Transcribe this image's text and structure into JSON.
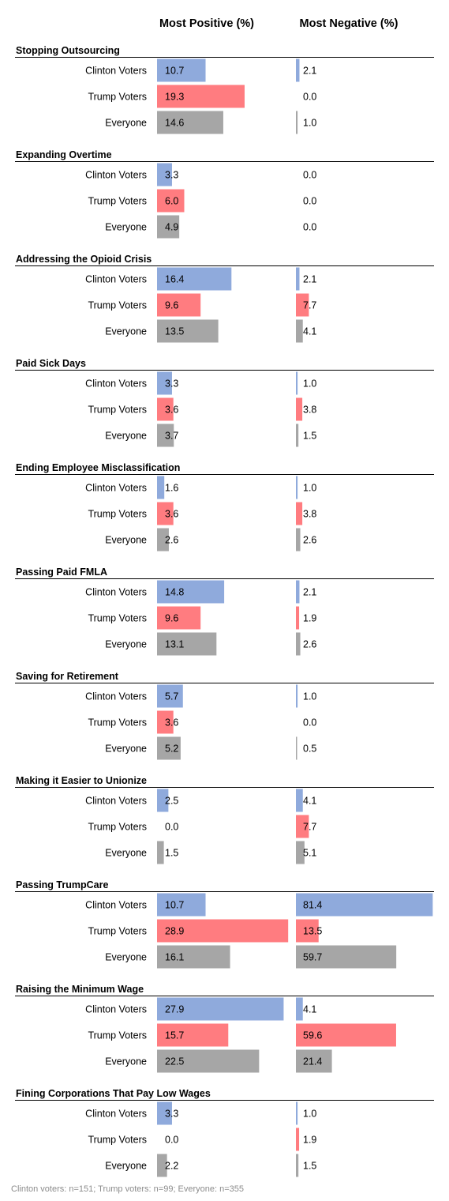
{
  "chart_data": {
    "type": "bar",
    "orientation": "horizontal",
    "columns": [
      "Most Positive (%)",
      "Most Negative (%)"
    ],
    "groups": [
      "Clinton Voters",
      "Trump Voters",
      "Everyone"
    ],
    "colors": {
      "Clinton Voters": "#8faadc",
      "Trump Voters": "#ff7c80",
      "Everyone": "#a6a6a6"
    },
    "grid": false,
    "legend": "none",
    "xlim": [
      0,
      82
    ],
    "categories": [
      {
        "name": "Stopping Outsourcing",
        "positive": [
          10.7,
          19.3,
          14.6
        ],
        "negative": [
          2.1,
          0.0,
          1.0
        ]
      },
      {
        "name": "Expanding Overtime",
        "positive": [
          3.3,
          6.0,
          4.9
        ],
        "negative": [
          0.0,
          0.0,
          0.0
        ]
      },
      {
        "name": "Addressing the Opioid Crisis",
        "positive": [
          16.4,
          9.6,
          13.5
        ],
        "negative": [
          2.1,
          7.7,
          4.1
        ]
      },
      {
        "name": "Paid Sick Days",
        "positive": [
          3.3,
          3.6,
          3.7
        ],
        "negative": [
          1.0,
          3.8,
          1.5
        ]
      },
      {
        "name": "Ending Employee Misclassification",
        "positive": [
          1.6,
          3.6,
          2.6
        ],
        "negative": [
          1.0,
          3.8,
          2.6
        ]
      },
      {
        "name": "Passing Paid FMLA",
        "positive": [
          14.8,
          9.6,
          13.1
        ],
        "negative": [
          2.1,
          1.9,
          2.6
        ]
      },
      {
        "name": "Saving for Retirement",
        "positive": [
          5.7,
          3.6,
          5.2
        ],
        "negative": [
          1.0,
          0.0,
          0.5
        ]
      },
      {
        "name": "Making it Easier to Unionize",
        "positive": [
          2.5,
          0.0,
          1.5
        ],
        "negative": [
          4.1,
          7.7,
          5.1
        ]
      },
      {
        "name": "Passing TrumpCare",
        "positive": [
          10.7,
          28.9,
          16.1
        ],
        "negative": [
          81.4,
          13.5,
          59.7
        ]
      },
      {
        "name": "Raising the Minimum Wage",
        "positive": [
          27.9,
          15.7,
          22.5
        ],
        "negative": [
          4.1,
          59.6,
          21.4
        ]
      },
      {
        "name": "Fining Corporations That Pay Low Wages",
        "positive": [
          3.3,
          0.0,
          2.2
        ],
        "negative": [
          1.0,
          1.9,
          1.5
        ]
      }
    ],
    "footnote": "Clinton voters: n=151; Trump voters: n=99; Everyone: n=355"
  }
}
